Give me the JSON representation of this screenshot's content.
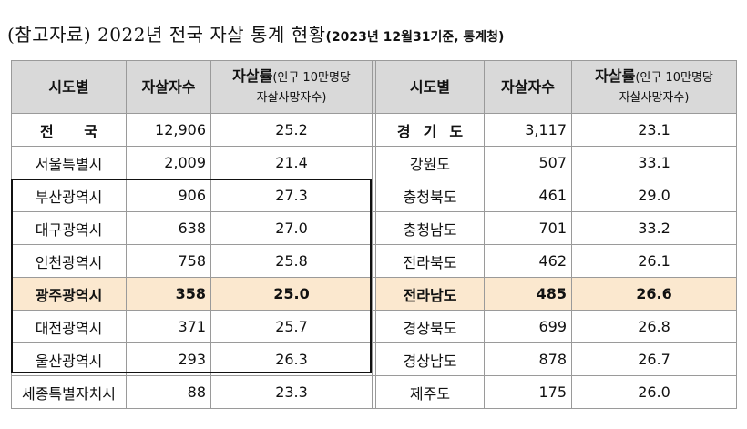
{
  "title": {
    "main": "(참고자료) 2022년 전국 자살 통계 현황",
    "sub": "(2023년 12월31기준, 통계청)"
  },
  "headers": {
    "region": "시도별",
    "count": "자살자수",
    "rate_main": "자살률",
    "rate_note": "(인구 10만명당",
    "rate_note2": "자살사망자수)"
  },
  "rows": [
    {
      "left": {
        "region": "전 국",
        "count": "12,906",
        "rate": "25.2"
      },
      "right": {
        "region": "경기도",
        "count": "3,117",
        "rate": "23.1"
      }
    },
    {
      "left": {
        "region": "서울특별시",
        "count": "2,009",
        "rate": "21.4"
      },
      "right": {
        "region": "강원도",
        "count": "507",
        "rate": "33.1"
      }
    },
    {
      "left": {
        "region": "부산광역시",
        "count": "906",
        "rate": "27.3"
      },
      "right": {
        "region": "충청북도",
        "count": "461",
        "rate": "29.0"
      }
    },
    {
      "left": {
        "region": "대구광역시",
        "count": "638",
        "rate": "27.0"
      },
      "right": {
        "region": "충청남도",
        "count": "701",
        "rate": "33.2"
      }
    },
    {
      "left": {
        "region": "인천광역시",
        "count": "758",
        "rate": "25.8"
      },
      "right": {
        "region": "전라북도",
        "count": "462",
        "rate": "26.1"
      }
    },
    {
      "left": {
        "region": "광주광역시",
        "count": "358",
        "rate": "25.0"
      },
      "right": {
        "region": "전라남도",
        "count": "485",
        "rate": "26.6"
      }
    },
    {
      "left": {
        "region": "대전광역시",
        "count": "371",
        "rate": "25.7"
      },
      "right": {
        "region": "경상북도",
        "count": "699",
        "rate": "26.8"
      }
    },
    {
      "left": {
        "region": "울산광역시",
        "count": "293",
        "rate": "26.3"
      },
      "right": {
        "region": "경상남도",
        "count": "878",
        "rate": "26.7"
      }
    },
    {
      "left": {
        "region": "세종특별자치시",
        "count": "88",
        "rate": "23.3"
      },
      "right": {
        "region": "제주도",
        "count": "175",
        "rate": "26.0"
      }
    }
  ],
  "colors": {
    "header_bg": "#d9d9d9",
    "highlight_bg": "#fbe8cf",
    "group_border": "#111111"
  }
}
